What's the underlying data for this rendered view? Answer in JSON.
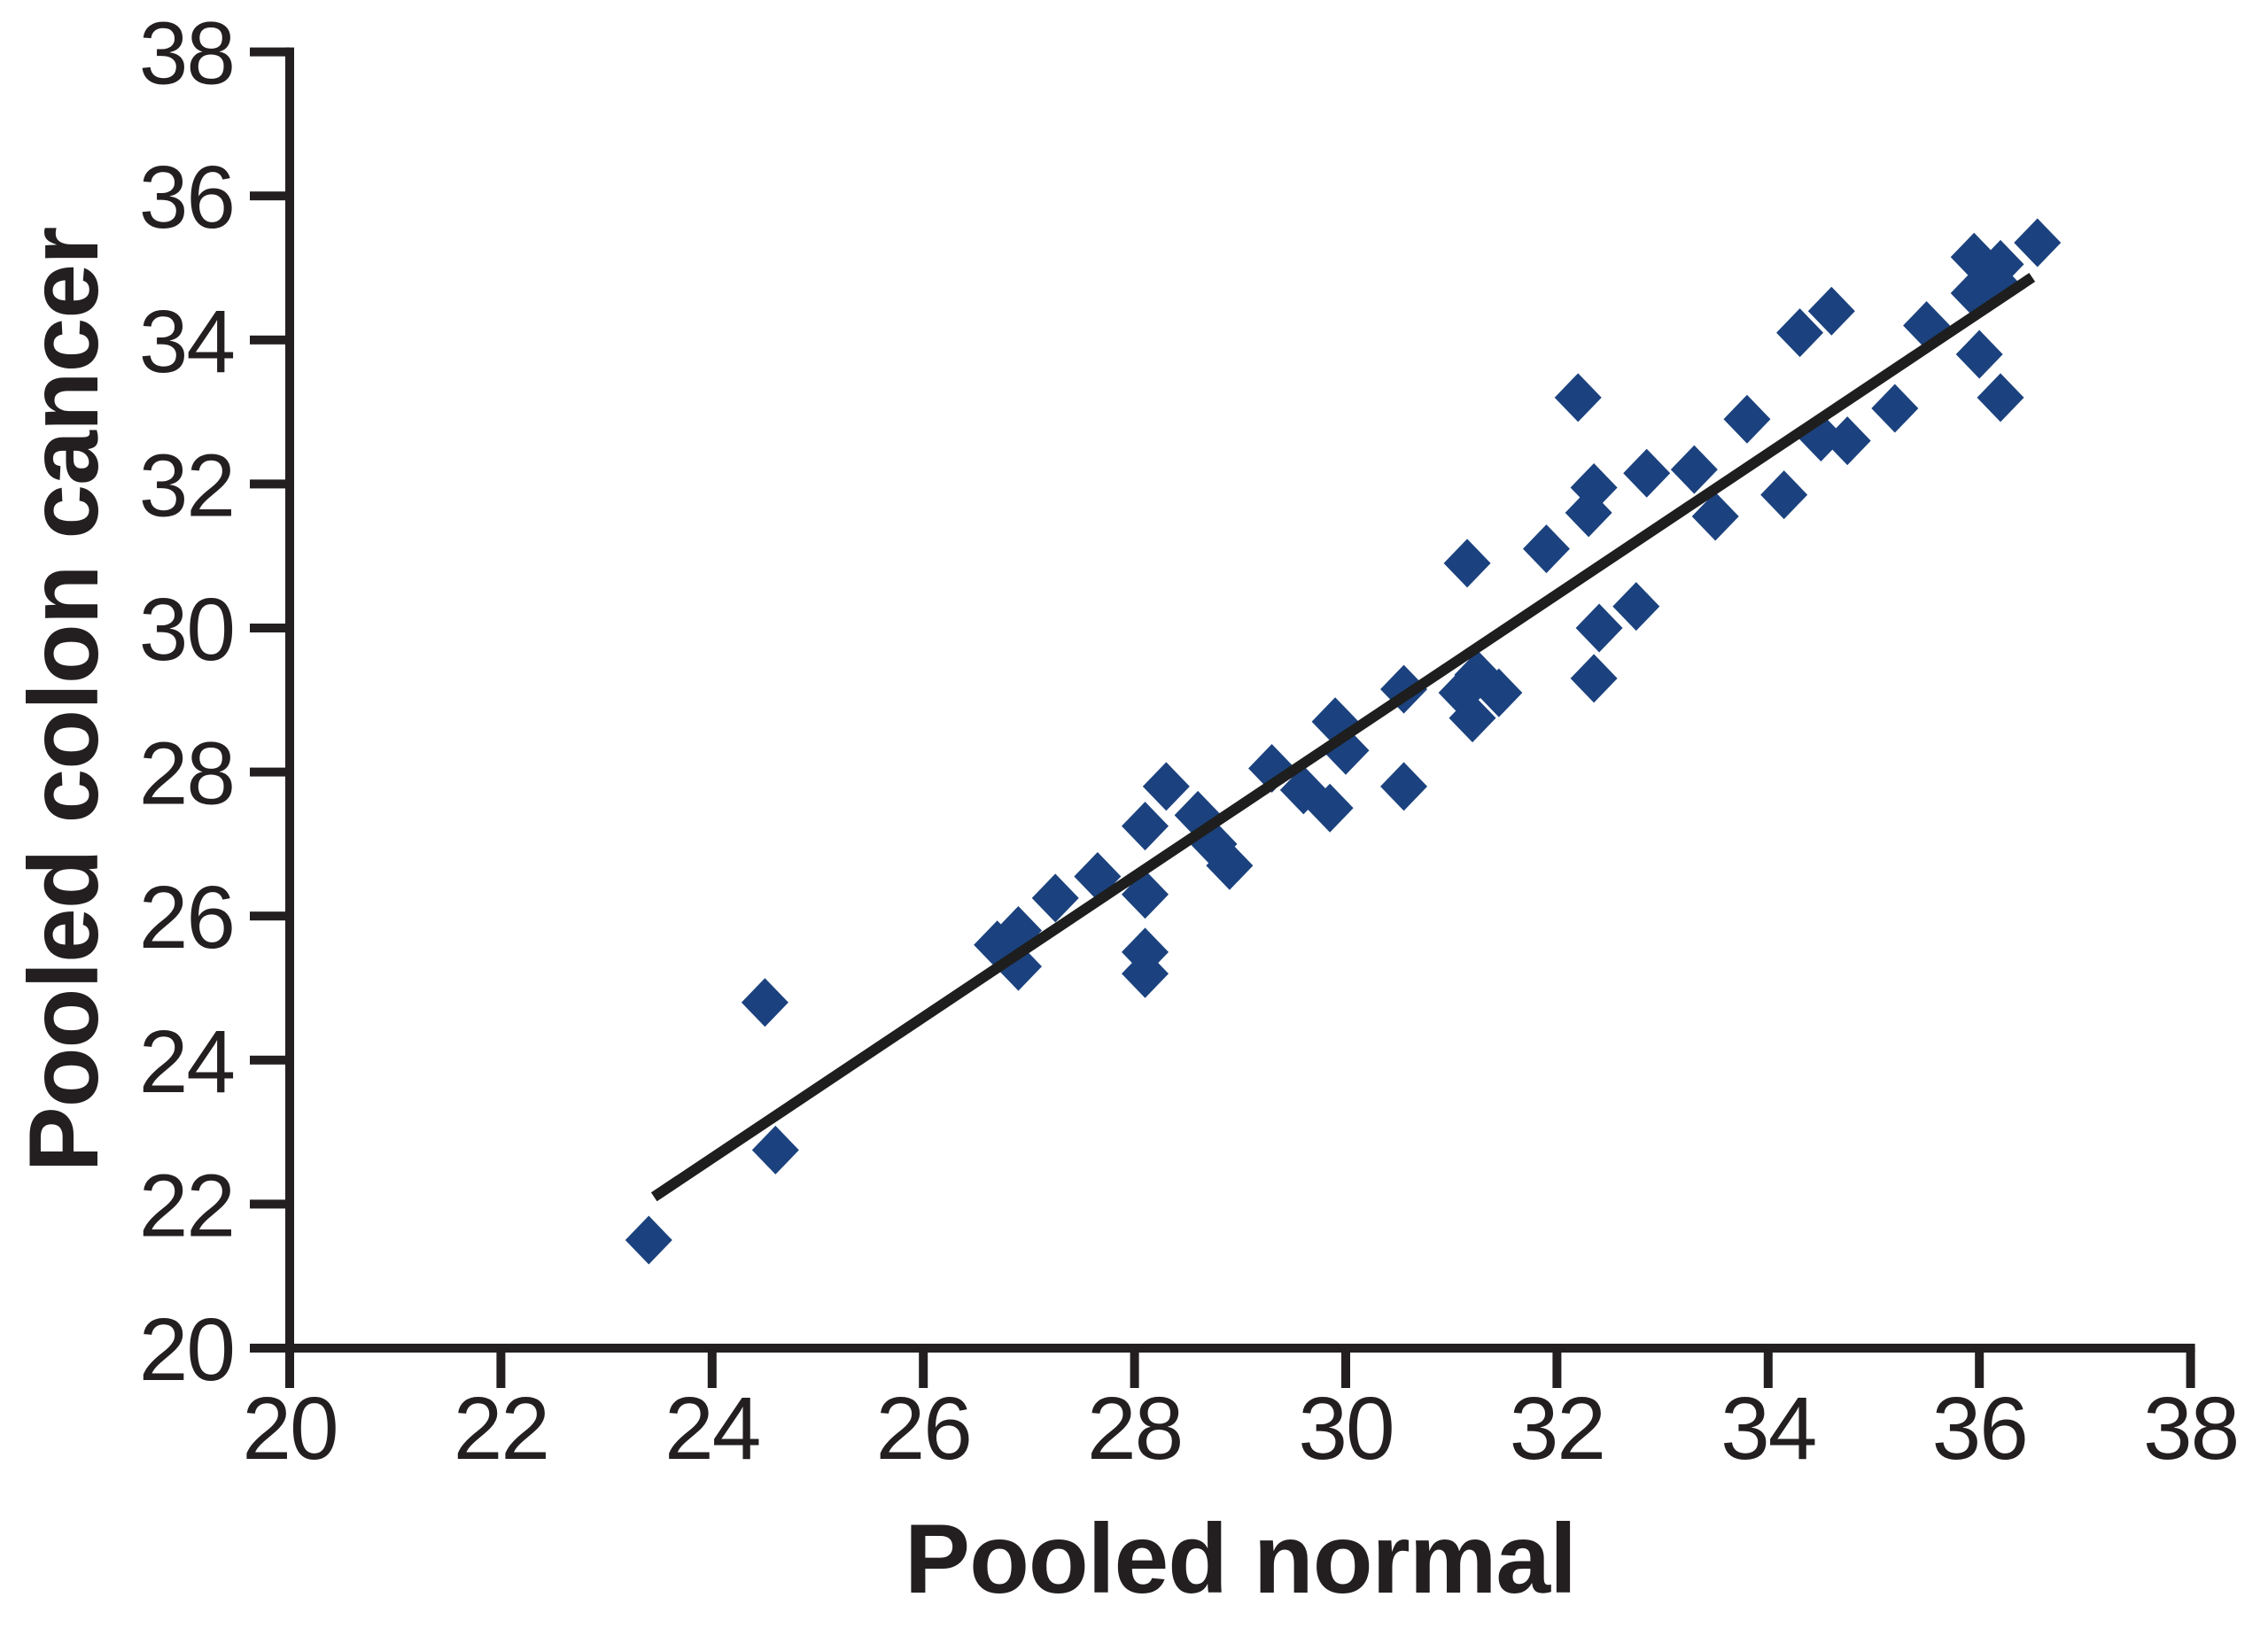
{
  "figure": {
    "background_color": "#ffffff",
    "text_color": "#231f20",
    "axis_color": "#231f20",
    "marker_color": "#1b427e",
    "trend_line_color": "#1e1e1e"
  },
  "chart_data": {
    "type": "scatter",
    "title": "",
    "xlabel": "Pooled normal",
    "ylabel": "Pooled colon cancer",
    "xlim": [
      20,
      38
    ],
    "ylim": [
      20,
      38
    ],
    "xticks": [
      20,
      22,
      24,
      26,
      28,
      30,
      32,
      34,
      36,
      38
    ],
    "yticks": [
      20,
      22,
      24,
      26,
      28,
      30,
      32,
      34,
      36,
      38
    ],
    "grid": false,
    "legend": "none",
    "marker": "diamond",
    "points": [
      [
        23.4,
        21.5
      ],
      [
        24.5,
        24.8
      ],
      [
        24.6,
        22.75
      ],
      [
        26.7,
        25.6
      ],
      [
        26.9,
        25.8
      ],
      [
        26.9,
        25.3
      ],
      [
        27.25,
        26.25
      ],
      [
        27.65,
        26.55
      ],
      [
        28.1,
        27.25
      ],
      [
        28.1,
        26.3
      ],
      [
        28.1,
        25.5
      ],
      [
        28.1,
        25.2
      ],
      [
        28.3,
        27.8
      ],
      [
        28.6,
        27.4
      ],
      [
        28.75,
        27.0
      ],
      [
        28.9,
        26.7
      ],
      [
        29.3,
        28.05
      ],
      [
        29.6,
        27.75
      ],
      [
        29.85,
        27.5
      ],
      [
        29.9,
        28.7
      ],
      [
        30.0,
        28.3
      ],
      [
        30.55,
        27.8
      ],
      [
        30.55,
        29.15
      ],
      [
        31.1,
        29.1
      ],
      [
        31.25,
        29.35
      ],
      [
        31.45,
        29.1
      ],
      [
        31.2,
        28.75
      ],
      [
        31.15,
        30.9
      ],
      [
        31.9,
        31.1
      ],
      [
        32.2,
        33.2
      ],
      [
        32.3,
        31.6
      ],
      [
        32.35,
        31.95
      ],
      [
        32.35,
        29.3
      ],
      [
        32.4,
        30.0
      ],
      [
        32.75,
        30.3
      ],
      [
        32.85,
        32.15
      ],
      [
        33.3,
        32.2
      ],
      [
        33.5,
        31.55
      ],
      [
        33.8,
        32.9
      ],
      [
        34.15,
        31.85
      ],
      [
        34.3,
        34.1
      ],
      [
        34.5,
        32.65
      ],
      [
        34.6,
        34.4
      ],
      [
        34.75,
        32.6
      ],
      [
        35.2,
        33.05
      ],
      [
        35.5,
        34.2
      ],
      [
        35.95,
        35.15
      ],
      [
        35.95,
        34.65
      ],
      [
        36.0,
        33.8
      ],
      [
        36.15,
        34.8
      ],
      [
        36.2,
        35.05
      ],
      [
        36.2,
        33.2
      ],
      [
        36.55,
        35.35
      ]
    ],
    "trendline": {
      "x1": 23.45,
      "y1": 22.1,
      "x2": 36.5,
      "y2": 34.87
    }
  }
}
